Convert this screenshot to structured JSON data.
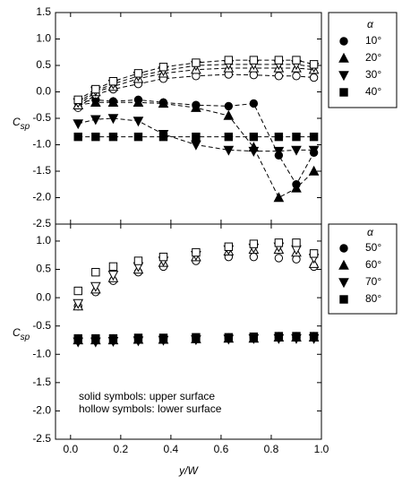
{
  "chart_data": [
    {
      "type": "line",
      "y_label": {
        "main": "C",
        "sub": "sp"
      },
      "legend_title": "α",
      "x": [
        0.03,
        0.1,
        0.17,
        0.27,
        0.37,
        0.5,
        0.63,
        0.73,
        0.83,
        0.9,
        0.97
      ],
      "xlim": [
        -0.06,
        1.0
      ],
      "xticks": [
        0,
        0.2,
        0.4,
        0.6,
        0.8,
        1
      ],
      "ylim": [
        -2.5,
        1.5
      ],
      "yticks": [
        1.5,
        {
          "value": 1,
          "label": "1.0"
        },
        0.5,
        {
          "value": 0,
          "label": "0.0"
        },
        -0.5,
        {
          "value": -1,
          "label": "-1.0"
        },
        -1.5,
        {
          "value": -2,
          "label": "-2.0"
        },
        -2.5
      ],
      "series": [
        {
          "name": "10°",
          "marker": "circle",
          "color": "#000",
          "upper_values": [
            -0.2,
            -0.15,
            -0.18,
            -0.15,
            -0.2,
            -0.25,
            -0.27,
            -0.22,
            -1.2,
            -1.75,
            -1.15
          ],
          "lower_values": [
            -0.3,
            -0.05,
            0.05,
            0.15,
            0.25,
            0.3,
            0.33,
            0.32,
            0.3,
            0.3,
            0.27
          ]
        },
        {
          "name": "20°",
          "marker": "triangle",
          "color": "#000",
          "upper_values": [
            -0.25,
            -0.2,
            -0.2,
            -0.2,
            -0.22,
            -0.3,
            -0.45,
            -1.05,
            -2.0,
            -1.82,
            -1.5
          ],
          "lower_values": [
            -0.25,
            0,
            0.1,
            0.25,
            0.35,
            0.42,
            0.45,
            0.45,
            0.45,
            0.45,
            0.42
          ]
        },
        {
          "name": "30°",
          "marker": "triangle-down",
          "color": "#000",
          "upper_values": [
            -0.6,
            -0.52,
            -0.5,
            -0.55,
            -0.8,
            -1.0,
            -1.1,
            -1.12,
            -1.12,
            -1.1,
            -1.1
          ],
          "lower_values": [
            -0.2,
            0.02,
            0.15,
            0.3,
            0.4,
            0.5,
            0.52,
            0.52,
            0.52,
            0.52,
            0.47
          ]
        },
        {
          "name": "40°",
          "marker": "square",
          "color": "#000",
          "upper_values": [
            -0.85,
            -0.85,
            -0.85,
            -0.85,
            -0.85,
            -0.85,
            -0.85,
            -0.85,
            -0.85,
            -0.85,
            -0.85
          ],
          "lower_values": [
            -0.15,
            0.05,
            0.2,
            0.35,
            0.47,
            0.55,
            0.6,
            0.6,
            0.6,
            0.6,
            0.52
          ]
        }
      ]
    },
    {
      "type": "scatter",
      "y_label": {
        "main": "C",
        "sub": "sp"
      },
      "x_label": "y/W",
      "legend_title": "α",
      "annotations": [
        "solid symbols: upper surface",
        "hollow symbols: lower surface"
      ],
      "x": [
        0.03,
        0.1,
        0.17,
        0.27,
        0.37,
        0.5,
        0.63,
        0.73,
        0.83,
        0.9,
        0.97
      ],
      "xlim": [
        -0.06,
        1.0
      ],
      "xticks": [
        {
          "value": 0,
          "label": "0.0"
        },
        0.2,
        0.4,
        0.6,
        0.8,
        {
          "value": 1,
          "label": "1.0"
        }
      ],
      "ylim": [
        -2.5,
        1.3
      ],
      "yticks": [
        {
          "value": 1,
          "label": "1.0"
        },
        0.5,
        {
          "value": 0,
          "label": "0.0"
        },
        -0.5,
        {
          "value": -1,
          "label": "-1.0"
        },
        -1.5,
        {
          "value": -2,
          "label": "-2.0"
        },
        -2.5
      ],
      "series": [
        {
          "name": "50°",
          "marker": "circle",
          "color": "#000",
          "upper_values": [
            -0.72,
            -0.72,
            -0.72,
            -0.72,
            -0.72,
            -0.71,
            -0.71,
            -0.7,
            -0.7,
            -0.7,
            -0.7
          ],
          "lower_values": [
            -0.15,
            0.1,
            0.3,
            0.45,
            0.55,
            0.65,
            0.72,
            0.72,
            0.7,
            0.68,
            0.55
          ]
        },
        {
          "name": "60°",
          "marker": "triangle",
          "color": "#000",
          "upper_values": [
            -0.75,
            -0.75,
            -0.75,
            -0.74,
            -0.74,
            -0.73,
            -0.72,
            -0.72,
            -0.7,
            -0.7,
            -0.7
          ],
          "lower_values": [
            -0.15,
            0.15,
            0.35,
            0.5,
            0.62,
            0.72,
            0.82,
            0.85,
            0.85,
            0.8,
            0.6
          ]
        },
        {
          "name": "70°",
          "marker": "triangle-down",
          "color": "#000",
          "upper_values": [
            -0.78,
            -0.78,
            -0.77,
            -0.76,
            -0.75,
            -0.74,
            -0.73,
            -0.72,
            -0.72,
            -0.72,
            -0.72
          ],
          "lower_values": [
            -0.1,
            0.2,
            0.4,
            0.55,
            0.65,
            0.75,
            0.85,
            0.88,
            0.9,
            0.85,
            0.7
          ]
        },
        {
          "name": "80°",
          "marker": "square",
          "color": "#000",
          "upper_values": [
            -0.72,
            -0.72,
            -0.72,
            -0.71,
            -0.71,
            -0.7,
            -0.7,
            -0.69,
            -0.68,
            -0.68,
            -0.68
          ],
          "lower_values": [
            0.12,
            0.45,
            0.55,
            0.65,
            0.72,
            0.8,
            0.9,
            0.95,
            0.97,
            0.97,
            0.78
          ]
        }
      ]
    }
  ]
}
